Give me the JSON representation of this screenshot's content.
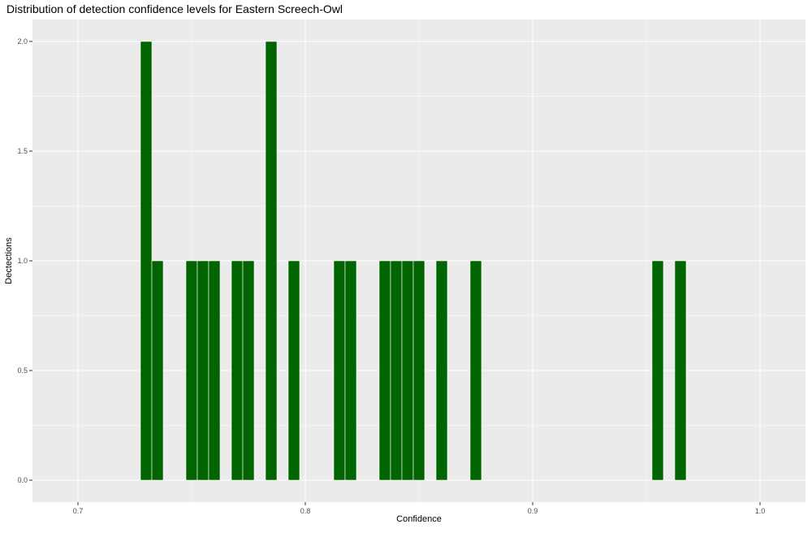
{
  "chart_data": {
    "type": "bar",
    "title": "Distribution of detection confidence levels for Eastern Screech-Owl",
    "xlabel": "Confidence",
    "ylabel": "Dectections",
    "xlim": [
      0.68,
      1.02
    ],
    "ylim": [
      -0.1,
      2.1
    ],
    "x_ticks": [
      0.7,
      0.8,
      0.9,
      1.0
    ],
    "x_tick_labels": [
      "0.7",
      "0.8",
      "0.9",
      "1.0"
    ],
    "y_ticks": [
      0,
      0.5,
      1,
      1.5,
      2
    ],
    "y_tick_labels": [
      "0.0",
      "0.5",
      "1.0",
      "1.5",
      "2.0"
    ],
    "bin_width": 0.005,
    "bins": [
      {
        "x": 0.73,
        "count": 2
      },
      {
        "x": 0.735,
        "count": 1
      },
      {
        "x": 0.75,
        "count": 1
      },
      {
        "x": 0.755,
        "count": 1
      },
      {
        "x": 0.76,
        "count": 1
      },
      {
        "x": 0.77,
        "count": 1
      },
      {
        "x": 0.775,
        "count": 1
      },
      {
        "x": 0.785,
        "count": 2
      },
      {
        "x": 0.795,
        "count": 1
      },
      {
        "x": 0.815,
        "count": 1
      },
      {
        "x": 0.82,
        "count": 1
      },
      {
        "x": 0.835,
        "count": 1
      },
      {
        "x": 0.84,
        "count": 1
      },
      {
        "x": 0.845,
        "count": 1
      },
      {
        "x": 0.85,
        "count": 1
      },
      {
        "x": 0.86,
        "count": 1
      },
      {
        "x": 0.875,
        "count": 1
      },
      {
        "x": 0.955,
        "count": 1
      },
      {
        "x": 0.965,
        "count": 1
      }
    ],
    "bar_color": "#006400",
    "panel_background": "#ebebeb",
    "grid_color": "#ffffff",
    "grid": true,
    "legend": "none"
  }
}
